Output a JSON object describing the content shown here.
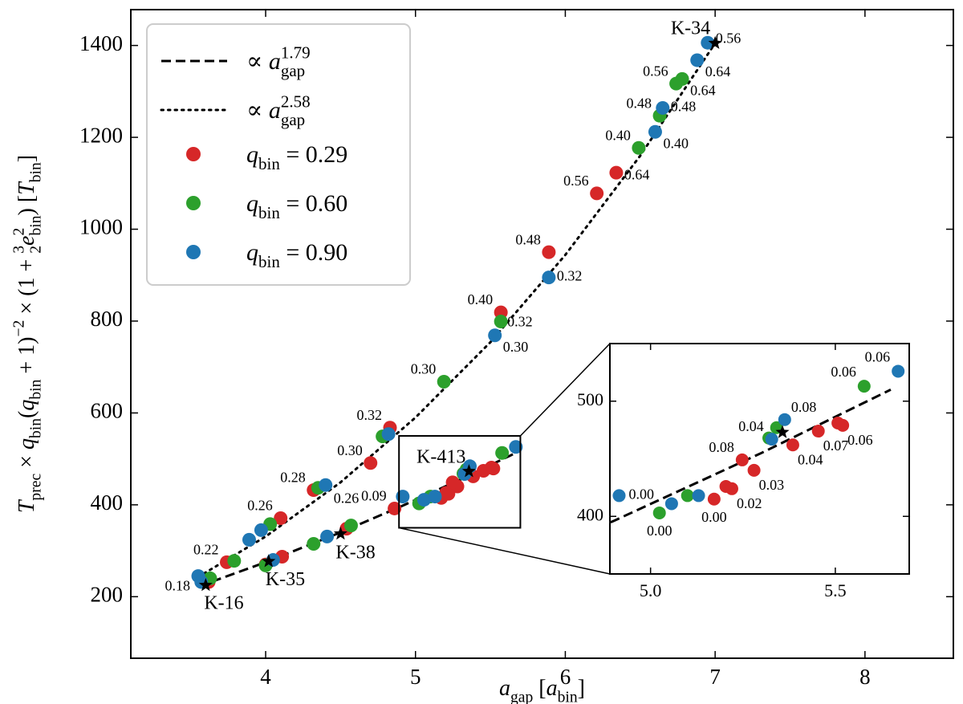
{
  "chart_data": {
    "type": "scatter",
    "xlabel": [
      {
        "text": "a",
        "italic": true
      },
      {
        "text": "gap",
        "pos": "sub"
      },
      {
        "text": " ["
      },
      {
        "text": "a",
        "italic": true
      },
      {
        "text": "bin",
        "pos": "sub"
      },
      {
        "text": "]"
      }
    ],
    "ylabel": [
      {
        "text": "T",
        "italic": true
      },
      {
        "text": "prec",
        "pos": "sub"
      },
      {
        "text": " × "
      },
      {
        "text": "q",
        "italic": true
      },
      {
        "text": "bin",
        "pos": "sub"
      },
      {
        "text": "("
      },
      {
        "text": "q",
        "italic": true
      },
      {
        "text": "bin",
        "pos": "sub"
      },
      {
        "text": " + 1)"
      },
      {
        "text": "−2",
        "pos": "sup"
      },
      {
        "text": " × (1 + "
      },
      {
        "text": "3",
        "pos": "sup"
      },
      {
        "text": "2",
        "pos": "sub"
      },
      {
        "text": "e",
        "italic": true
      },
      {
        "text": "2",
        "pos": "sup"
      },
      {
        "text": "bin",
        "pos": "sub"
      },
      {
        "text": ") ["
      },
      {
        "text": "T",
        "italic": true
      },
      {
        "text": "bin",
        "pos": "sub"
      },
      {
        "text": "]"
      }
    ],
    "xlim": [
      3.1,
      8.59
    ],
    "ylim": [
      66,
      1478
    ],
    "xticks": [
      4,
      5,
      6,
      7,
      8
    ],
    "yticks": [
      200,
      400,
      600,
      800,
      1000,
      1200,
      1400
    ],
    "legend": "upper left",
    "fits": [
      {
        "name": [
          {
            "text": "∝ "
          },
          {
            "text": "a",
            "italic": true
          },
          {
            "text": "1.79",
            "pos": "sup"
          },
          {
            "text": "gap",
            "pos": "sub"
          }
        ],
        "style": "dashed",
        "x": [
          3.55,
          4,
          4.5,
          4.9,
          5.3,
          5.65
        ],
        "y": [
          222,
          275,
          340,
          396,
          455,
          510
        ]
      },
      {
        "name": [
          {
            "text": "∝ "
          },
          {
            "text": "a",
            "italic": true
          },
          {
            "text": "2.58",
            "pos": "sup"
          },
          {
            "text": "gap",
            "pos": "sub"
          }
        ],
        "style": "dotted",
        "x": [
          3.55,
          4,
          4.5,
          5,
          5.5,
          6,
          6.5,
          7
        ],
        "y": [
          243,
          331,
          449,
          590,
          754,
          944,
          1160,
          1405
        ]
      }
    ],
    "series": [
      {
        "name": [
          {
            "text": "q",
            "italic": true
          },
          {
            "text": "bin",
            "pos": "sub"
          },
          {
            "text": " = 0.29"
          }
        ],
        "color": "#d62728",
        "x": [
          3.62,
          4.0,
          4.11,
          4.54,
          4.86,
          5.172,
          5.204,
          5.22,
          5.28,
          5.248,
          5.385,
          5.454,
          5.507,
          5.52,
          3.74,
          4.1,
          4.32,
          4.7,
          4.83,
          5.57,
          5.89,
          6.21,
          6.34
        ],
        "y": [
          232,
          270,
          287,
          348,
          392,
          415,
          426,
          424,
          440,
          449,
          462,
          474,
          481,
          479,
          275,
          371,
          432,
          491,
          568,
          819,
          950,
          1078,
          1123
        ],
        "e_bin_labels": [
          null,
          null,
          null,
          null,
          "0.09",
          "0.00",
          null,
          "0.02",
          "0.03",
          "0.08",
          "0.04",
          "0.07",
          null,
          "0.06",
          "0.22",
          "0.26",
          "0.28",
          "0.30",
          "0.32",
          "0.40",
          "0.48",
          "0.56",
          "0.64"
        ]
      },
      {
        "name": [
          {
            "text": "q",
            "italic": true
          },
          {
            "text": "bin",
            "pos": "sub"
          },
          {
            "text": " = 0.60"
          }
        ],
        "color": "#2ca02c",
        "x": [
          3.63,
          4.0,
          4.32,
          4.57,
          5.024,
          5.1,
          5.32,
          5.341,
          5.578,
          3.79,
          4.03,
          4.35,
          4.78,
          5.19,
          5.57,
          6.49,
          6.63,
          6.74,
          6.78
        ],
        "y": [
          240,
          268,
          315,
          355,
          403,
          418,
          468,
          477,
          513,
          278,
          358,
          437,
          549,
          668,
          799,
          1177,
          1247,
          1317,
          1327
        ],
        "e_bin_labels": [
          null,
          null,
          null,
          null,
          "0.00",
          null,
          null,
          null,
          "0.06",
          null,
          null,
          null,
          null,
          "0.30",
          "0.32",
          "0.40",
          "0.48",
          "0.56",
          "0.64"
        ]
      },
      {
        "name": [
          {
            "text": "q",
            "italic": true
          },
          {
            "text": "bin",
            "pos": "sub"
          },
          {
            "text": " = 0.90"
          }
        ],
        "color": "#1f77b4",
        "x": [
          3.55,
          3.57,
          4.05,
          4.41,
          4.915,
          5.057,
          5.13,
          5.328,
          5.363,
          5.67,
          3.89,
          3.97,
          4.4,
          4.82,
          5.53,
          5.89,
          6.6,
          6.65,
          6.88,
          6.95
        ],
        "y": [
          245,
          232,
          280,
          331,
          418,
          411,
          418,
          467,
          484,
          526,
          324,
          345,
          443,
          554,
          769,
          895,
          1212,
          1264,
          1368,
          1406
        ],
        "e_bin_labels": [
          "0.18",
          null,
          null,
          null,
          "0.00",
          null,
          null,
          "0.04",
          "0.08",
          "0.06",
          null,
          null,
          "0.26",
          null,
          "0.30",
          "0.32",
          "0.40",
          "0.48",
          "0.64",
          "0.56"
        ]
      }
    ],
    "stars": {
      "names": [
        "K-16",
        "K-35",
        "K-38",
        "K-413",
        "K-34"
      ],
      "x": [
        3.6,
        4.02,
        4.5,
        5.357,
        7.0
      ],
      "y": [
        225,
        277,
        337,
        473,
        1405
      ]
    },
    "inset": {
      "xlim": [
        4.89,
        5.7
      ],
      "ylim": [
        350,
        550
      ],
      "xticks": [
        {
          "value": 5,
          "label": "5.0"
        },
        {
          "value": 5.5,
          "label": "5.5"
        }
      ],
      "yticks": [
        400,
        500
      ]
    }
  }
}
